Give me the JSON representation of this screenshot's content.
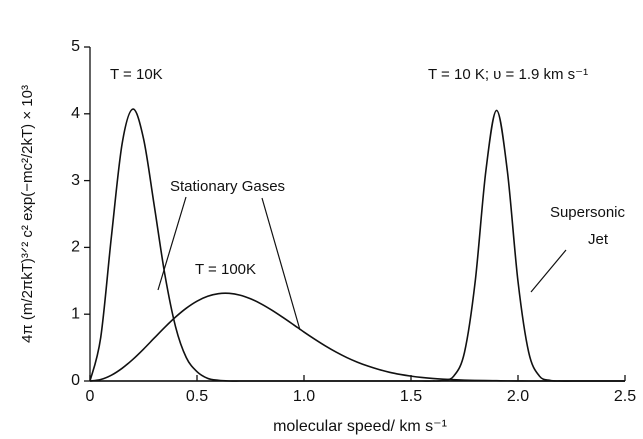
{
  "chart_data": {
    "type": "line",
    "xlabel": "molecular speed/ km s⁻¹",
    "ylabel": "4π (m/2πkT)³ᐟ² c² exp(−mc²/2kT) × 10³",
    "x": [
      0,
      0.05,
      0.1,
      0.15,
      0.2,
      0.25,
      0.3,
      0.35,
      0.4,
      0.45,
      0.5,
      0.55,
      0.6,
      0.65,
      0.7,
      0.75,
      0.8,
      0.85,
      0.9,
      0.95,
      1.0,
      1.05,
      1.1,
      1.15,
      1.2,
      1.25,
      1.3,
      1.35,
      1.4,
      1.45,
      1.5,
      1.55,
      1.6,
      1.65,
      1.7,
      1.75,
      1.8,
      1.85,
      1.9,
      1.95,
      2.0,
      2.05,
      2.1,
      2.15,
      2.2,
      2.25,
      2.3,
      2.35,
      2.4,
      2.45,
      2.5
    ],
    "series": [
      {
        "color": "#111111",
        "values": [
          0,
          0.65,
          2.16,
          3.55,
          4.07,
          3.63,
          2.63,
          1.59,
          0.81,
          0.35,
          0.14,
          0.04,
          0.01,
          0,
          0,
          0,
          0,
          0,
          0,
          0,
          0,
          0,
          0,
          0,
          0,
          0,
          0,
          0,
          0,
          0,
          0,
          0,
          0,
          0,
          0,
          0,
          0,
          0,
          0,
          0,
          0,
          0,
          0,
          0,
          0,
          0,
          0,
          0,
          0,
          0,
          0
        ]
      },
      {
        "color": "#111111",
        "values": [
          0,
          0.022,
          0.087,
          0.19,
          0.323,
          0.477,
          0.642,
          0.806,
          0.958,
          1.09,
          1.195,
          1.268,
          1.307,
          1.312,
          1.286,
          1.231,
          1.154,
          1.06,
          0.955,
          0.845,
          0.733,
          0.626,
          0.525,
          0.433,
          0.351,
          0.281,
          0.222,
          0.172,
          0.13,
          0.098,
          0.073,
          0.053,
          0.038,
          0.027,
          0.019,
          0.013,
          0.009,
          0.006,
          0.004,
          0.002,
          0.001,
          0,
          0,
          0,
          0,
          0,
          0,
          0,
          0,
          0,
          0
        ]
      },
      {
        "color": "#111111",
        "values": [
          0,
          0,
          0,
          0,
          0,
          0,
          0,
          0,
          0,
          0,
          0,
          0,
          0,
          0,
          0,
          0,
          0,
          0,
          0,
          0,
          0,
          0,
          0,
          0,
          0,
          0,
          0,
          0,
          0,
          0,
          0,
          0,
          0,
          0.008,
          0.074,
          0.43,
          1.49,
          3.15,
          4.05,
          3.15,
          1.49,
          0.43,
          0.074,
          0.008,
          0,
          0,
          0,
          0,
          0,
          0,
          0
        ]
      }
    ],
    "annotations": [
      "T = 10K",
      "Stationary Gases",
      "T = 100K",
      "T = 10 K;  υ = 1.9 km s⁻¹",
      "Supersonic",
      "Jet"
    ],
    "xlim": [
      0,
      2.5
    ],
    "ylim": [
      0,
      5
    ],
    "xticks": [
      0,
      0.5,
      {
        "value": 1,
        "label": "1.0"
      },
      1.5,
      {
        "value": 2,
        "label": "2.0"
      },
      2.5
    ],
    "yticks": [
      0,
      1,
      2,
      3,
      4,
      5
    ],
    "grid": false
  }
}
